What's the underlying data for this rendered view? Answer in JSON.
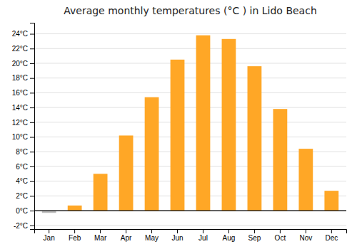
{
  "chart_data": {
    "type": "bar",
    "title": "Average monthly temperatures (°C ) in Lido Beach",
    "categories": [
      "Jan",
      "Feb",
      "Mar",
      "Apr",
      "May",
      "Jun",
      "Jul",
      "Aug",
      "Sep",
      "Oct",
      "Nov",
      "Dec"
    ],
    "values": [
      -0.3,
      0.7,
      5.0,
      10.2,
      15.4,
      20.5,
      23.8,
      23.3,
      19.6,
      13.8,
      8.4,
      2.7
    ],
    "colors": [
      "#BDBDBD",
      "#FFA726",
      "#FFA726",
      "#FFA726",
      "#FFA726",
      "#FFA726",
      "#FFA726",
      "#FFA726",
      "#FFA726",
      "#FFA726",
      "#FFA726",
      "#FFA726"
    ],
    "ylim": [
      -2.5,
      25.5
    ],
    "yticks": [
      {
        "value": -2,
        "label": "-2°C"
      },
      {
        "value": 0,
        "label": "0°C"
      },
      {
        "value": 2,
        "label": "2°C"
      },
      {
        "value": 4,
        "label": "4°C"
      },
      {
        "value": 6,
        "label": "6°C"
      },
      {
        "value": 8,
        "label": "8°C"
      },
      {
        "value": 10,
        "label": "10°C"
      },
      {
        "value": 12,
        "label": "12°C"
      },
      {
        "value": 14,
        "label": "14°C"
      },
      {
        "value": 16,
        "label": "16°C"
      },
      {
        "value": 18,
        "label": "18°C"
      },
      {
        "value": 20,
        "label": "20°C"
      },
      {
        "value": 22,
        "label": "22°C"
      },
      {
        "value": 24,
        "label": "24°C"
      }
    ],
    "grid": true
  }
}
